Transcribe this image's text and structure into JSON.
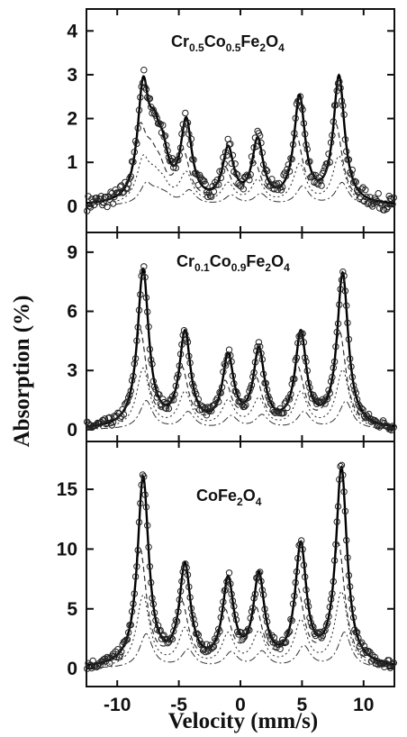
{
  "chart_data": [
    {
      "type": "line",
      "panel": "top",
      "label_parts": [
        "Cr",
        "0.5",
        "Co",
        "0.5",
        "Fe",
        "2",
        "O",
        "4"
      ],
      "xlim": [
        -12.5,
        12.5
      ],
      "ylim": [
        -0.6,
        4.5
      ],
      "yticks": [
        0,
        1,
        2,
        3,
        4
      ],
      "peaks": [
        {
          "x": -7.9,
          "depth": 2.5
        },
        {
          "x": -7.0,
          "depth": 1.1
        },
        {
          "x": -6.3,
          "depth": 0.85
        },
        {
          "x": -4.4,
          "depth": 1.8
        },
        {
          "x": -1.0,
          "depth": 1.2
        },
        {
          "x": 1.4,
          "depth": 1.4
        },
        {
          "x": 4.8,
          "depth": 2.4
        },
        {
          "x": 8.0,
          "depth": 2.9
        }
      ],
      "width": 0.55,
      "noise": 0.18
    },
    {
      "type": "line",
      "panel": "middle",
      "label_parts": [
        "Cr",
        "0.1",
        "Co",
        "0.9",
        "Fe",
        "2",
        "O",
        "4"
      ],
      "xlim": [
        -12.5,
        12.5
      ],
      "ylim": [
        -0.6,
        10
      ],
      "yticks": [
        0,
        3,
        6,
        9
      ],
      "peaks": [
        {
          "x": -7.9,
          "depth": 8.0
        },
        {
          "x": -4.5,
          "depth": 4.7
        },
        {
          "x": -1.0,
          "depth": 3.5
        },
        {
          "x": 1.5,
          "depth": 3.8
        },
        {
          "x": 4.9,
          "depth": 4.7
        },
        {
          "x": 8.3,
          "depth": 7.8
        }
      ],
      "width": 0.55,
      "noise": 0.25
    },
    {
      "type": "line",
      "panel": "bottom",
      "label_parts": [
        "CoFe",
        "2",
        "O",
        "4"
      ],
      "xlim": [
        -12.5,
        12.5
      ],
      "ylim": [
        -1.5,
        19
      ],
      "yticks": [
        0,
        5,
        10,
        15
      ],
      "xticks": [
        -10,
        -5,
        0,
        5,
        10
      ],
      "xlabel": "Velocity (mm/s)",
      "peaks": [
        {
          "x": -7.9,
          "depth": 15.8
        },
        {
          "x": -4.5,
          "depth": 8.2
        },
        {
          "x": -1.0,
          "depth": 7.0
        },
        {
          "x": 1.5,
          "depth": 7.3
        },
        {
          "x": 4.9,
          "depth": 9.9
        },
        {
          "x": 8.2,
          "depth": 16.5
        }
      ],
      "width": 0.55,
      "noise": 0.4
    }
  ],
  "ylabel": "Absorption (%)"
}
